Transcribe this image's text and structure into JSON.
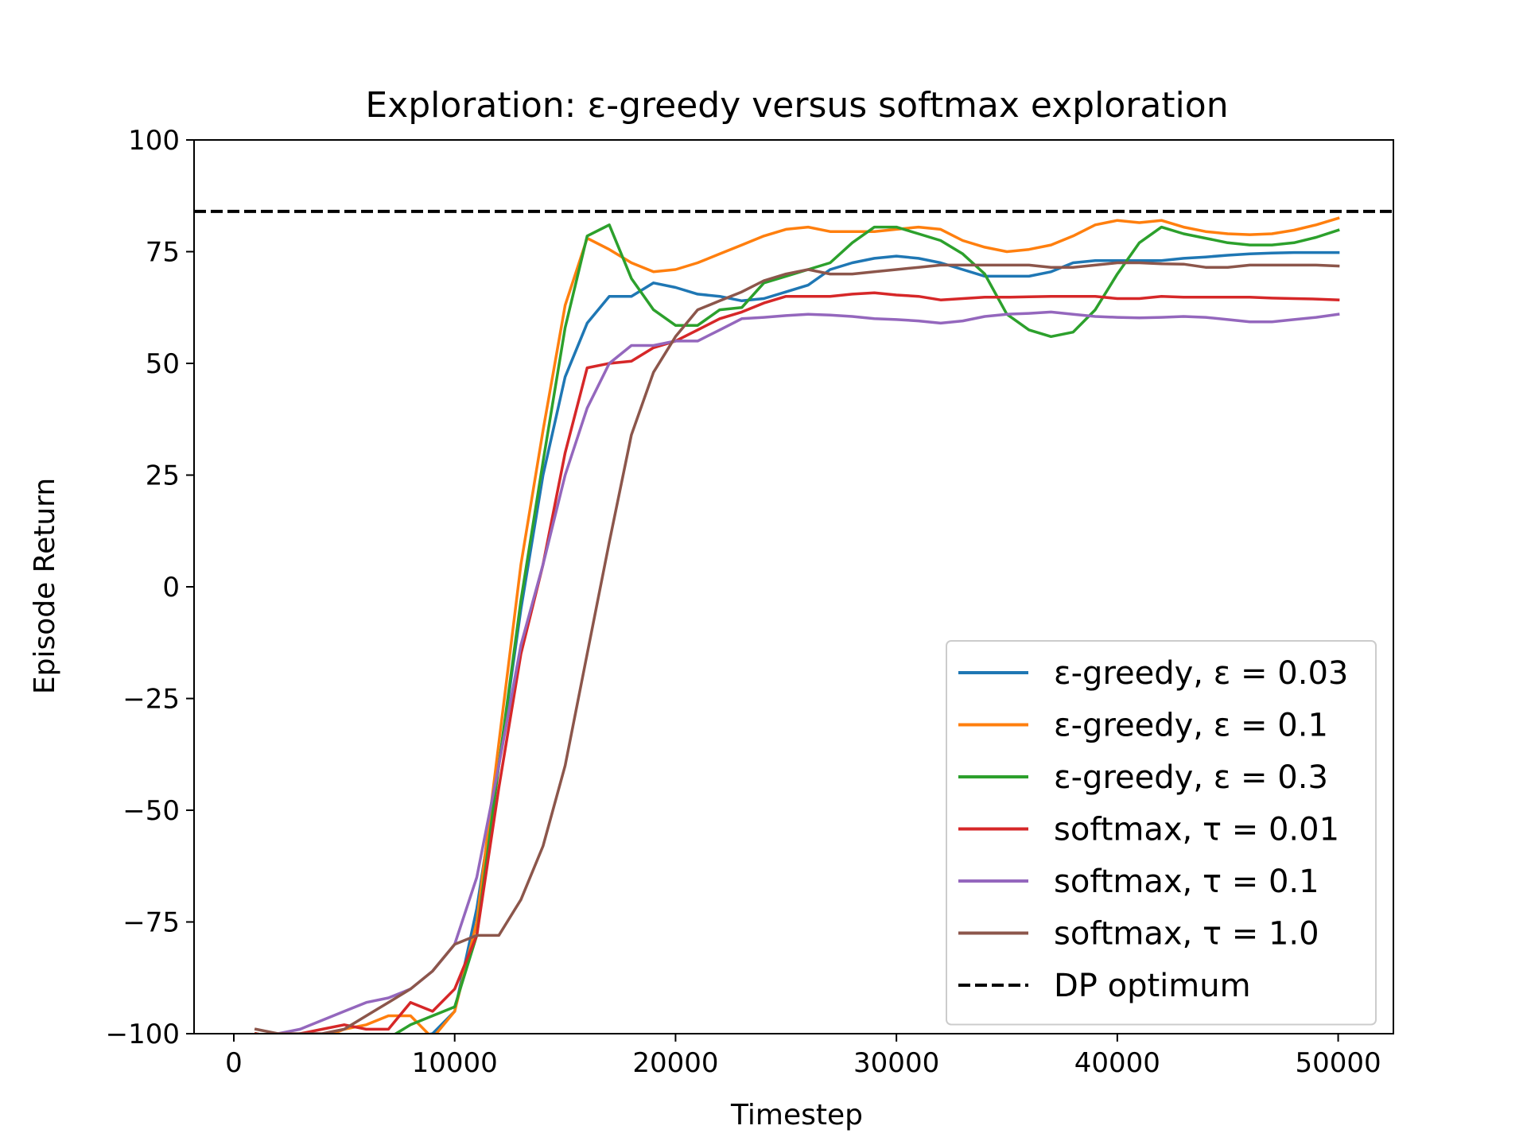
{
  "chart_data": {
    "type": "line",
    "title": "Exploration: ε-greedy versus softmax exploration",
    "xlabel": "Timestep",
    "ylabel": "Episode Return",
    "xlim": [
      -1800,
      52500
    ],
    "ylim": [
      -100,
      100
    ],
    "xticks": [
      0,
      10000,
      20000,
      30000,
      40000,
      50000
    ],
    "yticks": [
      -100,
      -75,
      -50,
      -25,
      0,
      25,
      50,
      75,
      100
    ],
    "grid": false,
    "legend_position": "lower-right",
    "x": [
      1000,
      2000,
      3000,
      4000,
      5000,
      6000,
      7000,
      8000,
      9000,
      10000,
      11000,
      12000,
      13000,
      14000,
      15000,
      16000,
      17000,
      18000,
      19000,
      20000,
      21000,
      22000,
      23000,
      24000,
      25000,
      26000,
      27000,
      28000,
      29000,
      30000,
      31000,
      32000,
      33000,
      34000,
      35000,
      36000,
      37000,
      38000,
      39000,
      40000,
      41000,
      42000,
      43000,
      44000,
      45000,
      46000,
      47000,
      48000,
      49000,
      50000
    ],
    "series": [
      {
        "name": "ε-greedy, ε = 0.03",
        "color": "#1f77b4",
        "values": [
          -100,
          -101,
          -101,
          -101,
          -101,
          -101,
          -101,
          -101,
          -100,
          -95,
          -72,
          -40,
          -5,
          25,
          47,
          59,
          65,
          65,
          68,
          67,
          65.5,
          65,
          64,
          64.5,
          66,
          67.5,
          71,
          72.5,
          73.5,
          74,
          73.5,
          72.5,
          71,
          69.5,
          69.5,
          69.5,
          70.5,
          72.5,
          73,
          73,
          73,
          73,
          73.5,
          73.8,
          74.2,
          74.5,
          74.7,
          74.8,
          74.8,
          74.8
        ]
      },
      {
        "name": "ε-greedy, ε = 0.1",
        "color": "#ff7f0e",
        "values": [
          -100,
          -101,
          -101,
          -101,
          -99,
          -98,
          -96,
          -96,
          -101,
          -95,
          -75,
          -35,
          5,
          35,
          63,
          78,
          75.5,
          72.5,
          70.5,
          71,
          72.5,
          74.5,
          76.5,
          78.5,
          80,
          80.5,
          79.5,
          79.5,
          79.5,
          80,
          80.5,
          80,
          77.5,
          76,
          75,
          75.5,
          76.5,
          78.5,
          81,
          82,
          81.5,
          82,
          80.5,
          79.5,
          79,
          78.8,
          79,
          79.8,
          81,
          82.5
        ]
      },
      {
        "name": "ε-greedy, ε = 0.3",
        "color": "#2ca02c",
        "values": [
          -100,
          -101,
          -101,
          -101,
          -101,
          -101,
          -101,
          -98,
          -96,
          -94,
          -78,
          -40,
          -3,
          28,
          58,
          78.5,
          81,
          69,
          62,
          58.5,
          58.5,
          62,
          62.5,
          68,
          69.5,
          71,
          72.5,
          77,
          80.5,
          80.5,
          79,
          77.5,
          74.5,
          70,
          61,
          57.5,
          56,
          57,
          62,
          70,
          77,
          80.5,
          79,
          78,
          77,
          76.5,
          76.5,
          77,
          78.2,
          79.8
        ]
      },
      {
        "name": "softmax, τ = 0.01",
        "color": "#d62728",
        "values": [
          -100,
          -101,
          -100,
          -99,
          -98,
          -99,
          -99,
          -93,
          -95,
          -90,
          -78,
          -45,
          -15,
          5,
          30,
          49,
          50,
          50.5,
          53.5,
          55,
          57.5,
          60,
          61.5,
          63.5,
          65,
          65,
          65,
          65.5,
          65.8,
          65.3,
          65,
          64.2,
          64.5,
          64.8,
          64.8,
          64.9,
          65,
          65,
          65,
          64.5,
          64.5,
          65,
          64.8,
          64.8,
          64.8,
          64.8,
          64.6,
          64.5,
          64.4,
          64.2
        ]
      },
      {
        "name": "softmax, τ = 0.1",
        "color": "#9467bd",
        "values": [
          -101,
          -100,
          -99,
          -97,
          -95,
          -93,
          -92,
          -90,
          -86,
          -80,
          -65,
          -40,
          -13,
          5,
          25,
          40,
          50,
          54,
          54,
          55,
          55,
          57.5,
          60,
          60.3,
          60.7,
          61,
          60.8,
          60.5,
          60,
          59.8,
          59.5,
          59,
          59.5,
          60.5,
          61,
          61.2,
          61.5,
          61,
          60.5,
          60.3,
          60.2,
          60.3,
          60.5,
          60.3,
          59.8,
          59.3,
          59.3,
          59.8,
          60.3,
          61
        ]
      },
      {
        "name": "softmax, τ = 1.0",
        "color": "#8c564b",
        "values": [
          -99,
          -100,
          -100,
          -100,
          -99,
          -96,
          -93,
          -90,
          -86,
          -80,
          -78,
          -78,
          -70,
          -58,
          -40,
          -15,
          10,
          34,
          48,
          56,
          62,
          64,
          66,
          68.5,
          70,
          71,
          70,
          70,
          70.5,
          71,
          71.5,
          72,
          72,
          72,
          72,
          72,
          71.5,
          71.5,
          72,
          72.5,
          72.5,
          72.3,
          72.2,
          71.5,
          71.5,
          72,
          72,
          72,
          72,
          71.8
        ]
      }
    ],
    "reference_lines": [
      {
        "name": "DP optimum",
        "y": 84,
        "style": "dashed",
        "color": "#000000"
      }
    ]
  }
}
